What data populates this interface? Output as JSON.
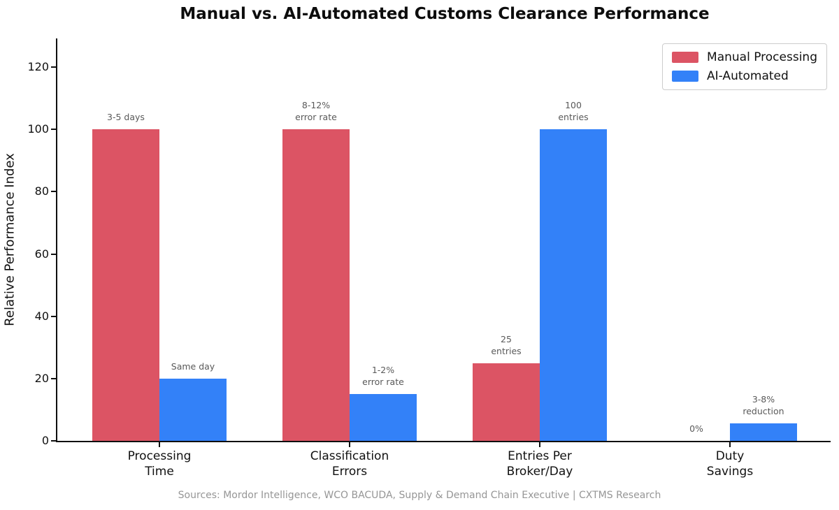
{
  "footer": "Sources: Mordor Intelligence, WCO BACUDA, Supply & Demand Chain Executive | CXTMS Research",
  "chart_data": {
    "type": "bar",
    "title": "Manual vs. AI-Automated Customs Clearance Performance",
    "xlabel": "",
    "ylabel": "Relative Performance Index",
    "ylim": [
      0,
      130
    ],
    "yticks": [
      0,
      20,
      40,
      60,
      80,
      100,
      120
    ],
    "grid": false,
    "legend_position": "upper right",
    "annotation_color": "#595959",
    "categories": [
      "Processing\nTime",
      "Classification\nErrors",
      "Entries Per\nBroker/Day",
      "Duty\nSavings"
    ],
    "series": [
      {
        "name": "Manual Processing",
        "color": "#DC5464",
        "values": [
          100,
          100,
          25,
          0
        ],
        "annotations": [
          "3-5 days",
          "8-12%\nerror rate",
          "25\nentries",
          "0%"
        ]
      },
      {
        "name": "AI-Automated",
        "color": "#3381F8",
        "values": [
          20,
          15,
          100,
          5.5
        ],
        "annotations": [
          "Same day",
          "1-2%\nerror rate",
          "100\nentries",
          "3-8%\nreduction"
        ]
      }
    ]
  }
}
